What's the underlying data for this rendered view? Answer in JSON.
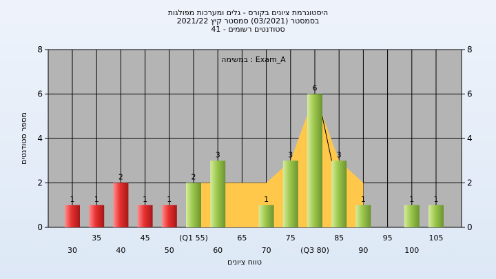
{
  "chart_data": {
    "type": "bar",
    "title_lines": [
      "היסטוגרמת ציונים בקורס - גלים ומערכות מפולגות",
      "בסמסטר  (03/2021)  סמסטר קיץ  2021/22",
      "סטודנטים רשומים - 41"
    ],
    "annotation": "במשימה : Exam_A",
    "xlabel": "טווח ציונים",
    "ylabel": "מספר סטודנטים",
    "ylim": [
      0,
      8
    ],
    "yticks": [
      0,
      2,
      4,
      6,
      8
    ],
    "x_tick_labels": [
      {
        "label": "30",
        "row": 2
      },
      {
        "label": "35",
        "row": 1
      },
      {
        "label": "40",
        "row": 2
      },
      {
        "label": "45",
        "row": 1
      },
      {
        "label": "50",
        "row": 2
      },
      {
        "label": "(Q1 55)",
        "row": 1
      },
      {
        "label": "60",
        "row": 2
      },
      {
        "label": "65",
        "row": 1
      },
      {
        "label": "70",
        "row": 2
      },
      {
        "label": "75",
        "row": 1
      },
      {
        "label": "(Q3 80)",
        "row": 2
      },
      {
        "label": "85",
        "row": 1
      },
      {
        "label": "90",
        "row": 2
      },
      {
        "label": "95",
        "row": 1
      },
      {
        "label": "100",
        "row": 2
      },
      {
        "label": "105",
        "row": 1
      }
    ],
    "bins": [
      30,
      35,
      40,
      45,
      50,
      55,
      60,
      65,
      70,
      75,
      80,
      85,
      90,
      95,
      100,
      105
    ],
    "values": [
      1,
      1,
      2,
      1,
      1,
      2,
      3,
      0,
      1,
      3,
      6,
      3,
      1,
      0,
      1,
      1
    ],
    "bar_labels": [
      "1",
      "1",
      "2",
      "1",
      "1",
      "2",
      "3",
      "",
      "1",
      "3",
      "6",
      "3",
      "1",
      "",
      "1",
      "1"
    ],
    "bar_colors": [
      "red",
      "red",
      "red",
      "red",
      "red",
      "green",
      "green",
      "green",
      "green",
      "green",
      "green",
      "green",
      "green",
      "green",
      "green",
      "green"
    ],
    "quartile_band": {
      "from_bin": 55,
      "to_bin": 80,
      "values": [
        2,
        2,
        2,
        2,
        3,
        6,
        3,
        2
      ]
    },
    "grid": true,
    "colors": {
      "plot_bg": "#b4b4b4",
      "red_light": "#ff8f8f",
      "red": "#e83030",
      "red_dark": "#a51717",
      "green_light": "#d6ec9c",
      "green": "#9cc74c",
      "green_dark": "#6c9430",
      "band": "#ffc84a"
    }
  }
}
